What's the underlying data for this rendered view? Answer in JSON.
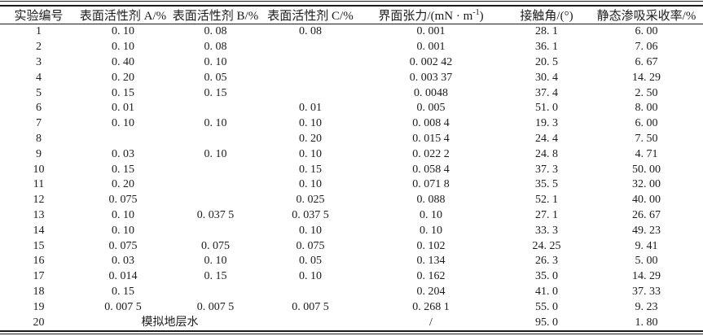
{
  "page": {
    "background_color": "#ffffff",
    "text_color": "#1c1c1c",
    "rule_color": "#1c1c1c"
  },
  "table": {
    "columns": {
      "exp_no": "实验编号",
      "surf_a": "表面活性剂 A/%",
      "surf_b": "表面活性剂 B/%",
      "surf_c": "表面活性剂 C/%",
      "ift_pre": "界面张力/(mN · m",
      "ift_sup": "-1",
      "ift_post": ")",
      "angle": "接触角/(°)",
      "recovery": "静态渗吸采收率/%"
    },
    "rows": [
      [
        "1",
        "0. 10",
        "0. 08",
        "0. 08",
        "0. 001",
        "28. 1",
        "6. 00"
      ],
      [
        "2",
        "0. 10",
        "0. 08",
        "",
        "0. 001",
        "36. 1",
        "7. 06"
      ],
      [
        "3",
        "0. 40",
        "0. 10",
        "",
        "0. 002 42",
        "20. 5",
        "6. 67"
      ],
      [
        "4",
        "0. 20",
        "0. 05",
        "",
        "0. 003 37",
        "30. 4",
        "14. 29"
      ],
      [
        "5",
        "0. 15",
        "0. 15",
        "",
        "0. 0048",
        "37. 4",
        "2. 50"
      ],
      [
        "6",
        "0. 01",
        "",
        "0. 01",
        "0. 005",
        "51. 0",
        "8. 00"
      ],
      [
        "7",
        "0. 10",
        "0. 10",
        "0. 10",
        "0. 008 4",
        "19. 3",
        "6. 00"
      ],
      [
        "8",
        "",
        "",
        "0. 20",
        "0. 015 4",
        "24. 4",
        "7. 50"
      ],
      [
        "9",
        "0. 03",
        "0. 10",
        "0. 10",
        "0. 022 2",
        "24. 8",
        "4. 71"
      ],
      [
        "10",
        "0. 15",
        "",
        "0. 15",
        "0. 058 4",
        "37. 3",
        "50. 00"
      ],
      [
        "11",
        "0. 20",
        "",
        "0. 10",
        "0. 071 8",
        "35. 5",
        "32. 00"
      ],
      [
        "12",
        "0. 075",
        "",
        "0. 025",
        "0. 088",
        "52. 1",
        "40. 00"
      ],
      [
        "13",
        "0. 10",
        "0. 037 5",
        "0. 037 5",
        "0. 10",
        "27. 1",
        "26. 67"
      ],
      [
        "14",
        "0. 10",
        "",
        "0. 10",
        "0. 10",
        "33. 3",
        "49. 23"
      ],
      [
        "15",
        "0. 075",
        "0. 075",
        "0. 075",
        "0. 102",
        "24. 25",
        "9. 41"
      ],
      [
        "16",
        "0. 03",
        "0. 10",
        "0. 05",
        "0. 134",
        "26. 3",
        "5. 00"
      ],
      [
        "17",
        "0. 014",
        "0. 15",
        "0. 10",
        "0. 162",
        "35. 0",
        "14. 29"
      ],
      [
        "18",
        "0. 15",
        "",
        "",
        "0. 204",
        "41. 0",
        "37. 33"
      ],
      [
        "19",
        "0. 007 5",
        "0. 007 5",
        "0. 007 5",
        "0. 268 1",
        "55. 0",
        "9. 23"
      ],
      [
        "20",
        {
          "text": "模拟地层水",
          "span": 2,
          "name": "merged-cell-simulated-formation-water"
        },
        "",
        "/",
        "95. 0",
        "1. 80"
      ]
    ]
  }
}
